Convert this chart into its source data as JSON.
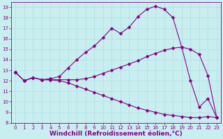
{
  "xlabel": "Windchill (Refroidissement éolien,°C)",
  "xlim": [
    -0.5,
    23.5
  ],
  "ylim": [
    8,
    19.5
  ],
  "xticks": [
    0,
    1,
    2,
    3,
    4,
    5,
    6,
    7,
    8,
    9,
    10,
    11,
    12,
    13,
    14,
    15,
    16,
    17,
    18,
    19,
    20,
    21,
    22,
    23
  ],
  "yticks": [
    8,
    9,
    10,
    11,
    12,
    13,
    14,
    15,
    16,
    17,
    18,
    19
  ],
  "bg_color": "#c8eef0",
  "line_color": "#880088",
  "grid_color": "#b0dde0",
  "line1_x": [
    0,
    1,
    2,
    3,
    4,
    5,
    6,
    7,
    8,
    9,
    10,
    11,
    12,
    13,
    14,
    15,
    16,
    17,
    18,
    19,
    20,
    21,
    22,
    23
  ],
  "line1_y": [
    12.8,
    12.0,
    12.3,
    12.1,
    12.2,
    12.4,
    13.2,
    14.0,
    14.7,
    15.3,
    16.1,
    17.0,
    16.5,
    17.1,
    18.1,
    18.8,
    19.1,
    18.8,
    18.0,
    15.2,
    12.0,
    9.5,
    10.3,
    8.5
  ],
  "line2_x": [
    0,
    1,
    2,
    3,
    4,
    5,
    6,
    7,
    8,
    9,
    10,
    11,
    12,
    13,
    14,
    15,
    16,
    17,
    18,
    19,
    20,
    21,
    22,
    23
  ],
  "line2_y": [
    12.8,
    12.0,
    12.3,
    12.1,
    12.1,
    12.1,
    12.1,
    12.1,
    12.2,
    12.4,
    12.7,
    13.0,
    13.3,
    13.6,
    13.9,
    14.3,
    14.6,
    14.9,
    15.1,
    15.2,
    15.0,
    14.5,
    12.5,
    8.5
  ],
  "line3_x": [
    0,
    1,
    2,
    3,
    4,
    5,
    6,
    7,
    8,
    9,
    10,
    11,
    12,
    13,
    14,
    15,
    16,
    17,
    18,
    19,
    20,
    21,
    22,
    23
  ],
  "line3_y": [
    12.8,
    12.0,
    12.3,
    12.1,
    12.1,
    12.0,
    11.8,
    11.5,
    11.2,
    10.9,
    10.6,
    10.3,
    10.0,
    9.7,
    9.4,
    9.2,
    9.0,
    8.8,
    8.7,
    8.6,
    8.5,
    8.5,
    8.6,
    8.5
  ],
  "marker": "D",
  "marker_size": 2.5,
  "line_width": 0.8,
  "font_color": "#880088",
  "tick_fontsize": 5,
  "label_fontsize": 6.5
}
